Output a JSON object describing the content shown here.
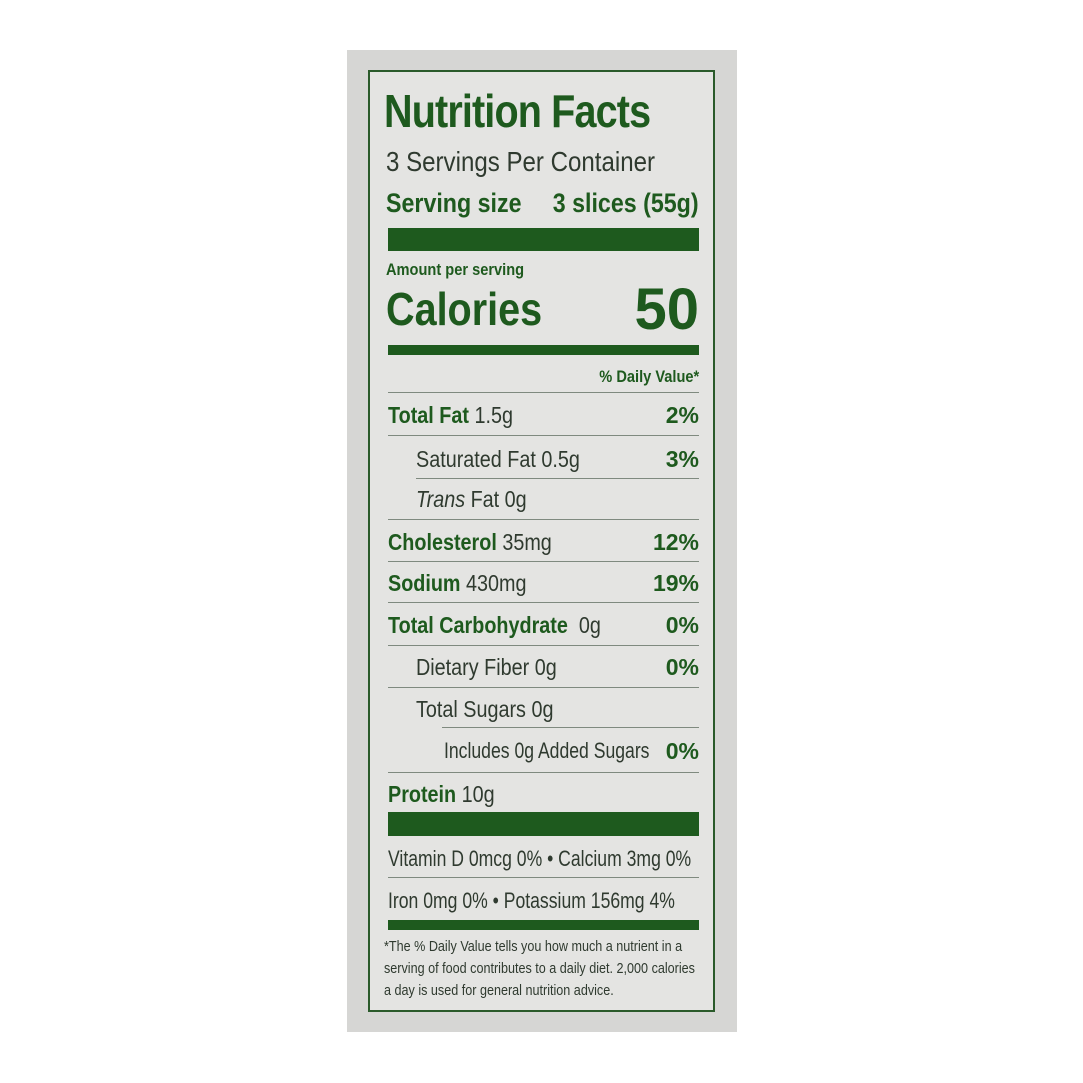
{
  "title": "Nutrition Facts",
  "servings_per_container": "3 Servings Per Container",
  "serving_size_label": "Serving size",
  "serving_size_value": "3 slices (55g)",
  "amount_per_serving": "Amount per serving",
  "calories_label": "Calories",
  "calories_value": "50",
  "daily_value_header": "% Daily Value*",
  "nutrients": [
    {
      "name": "Total Fat",
      "amount": "1.5g",
      "dv": "2%"
    },
    {
      "name": "Saturated Fat 0.5g",
      "amount": "",
      "dv": "3%"
    },
    {
      "name": "Trans",
      "amount": "Fat 0g",
      "dv": ""
    },
    {
      "name": "Cholesterol",
      "amount": "35mg",
      "dv": "12%"
    },
    {
      "name": "Sodium",
      "amount": "430mg",
      "dv": "19%"
    },
    {
      "name": "Total Carbohydrate",
      "amount": "0g",
      "dv": "0%"
    },
    {
      "name": "Dietary Fiber 0g",
      "amount": "",
      "dv": "0%"
    },
    {
      "name": "Total Sugars 0g",
      "amount": "",
      "dv": ""
    },
    {
      "name": "Includes 0g Added Sugars",
      "amount": "",
      "dv": "0%"
    },
    {
      "name": "Protein",
      "amount": "10g",
      "dv": ""
    }
  ],
  "vitamins": [
    "Vitamin D 0mcg 0% • Calcium 3mg 0%",
    "Iron 0mg 0% • Potassium 156mg  4%"
  ],
  "footnote": "*The % Daily Value tells you how much a nutrient in a serving of food contributes to a daily diet. 2,000 calories a day is used for general nutrition advice.",
  "colors": {
    "green": "#1e5a1e",
    "text": "#2f3a2f",
    "background": "#e4e4e2"
  }
}
